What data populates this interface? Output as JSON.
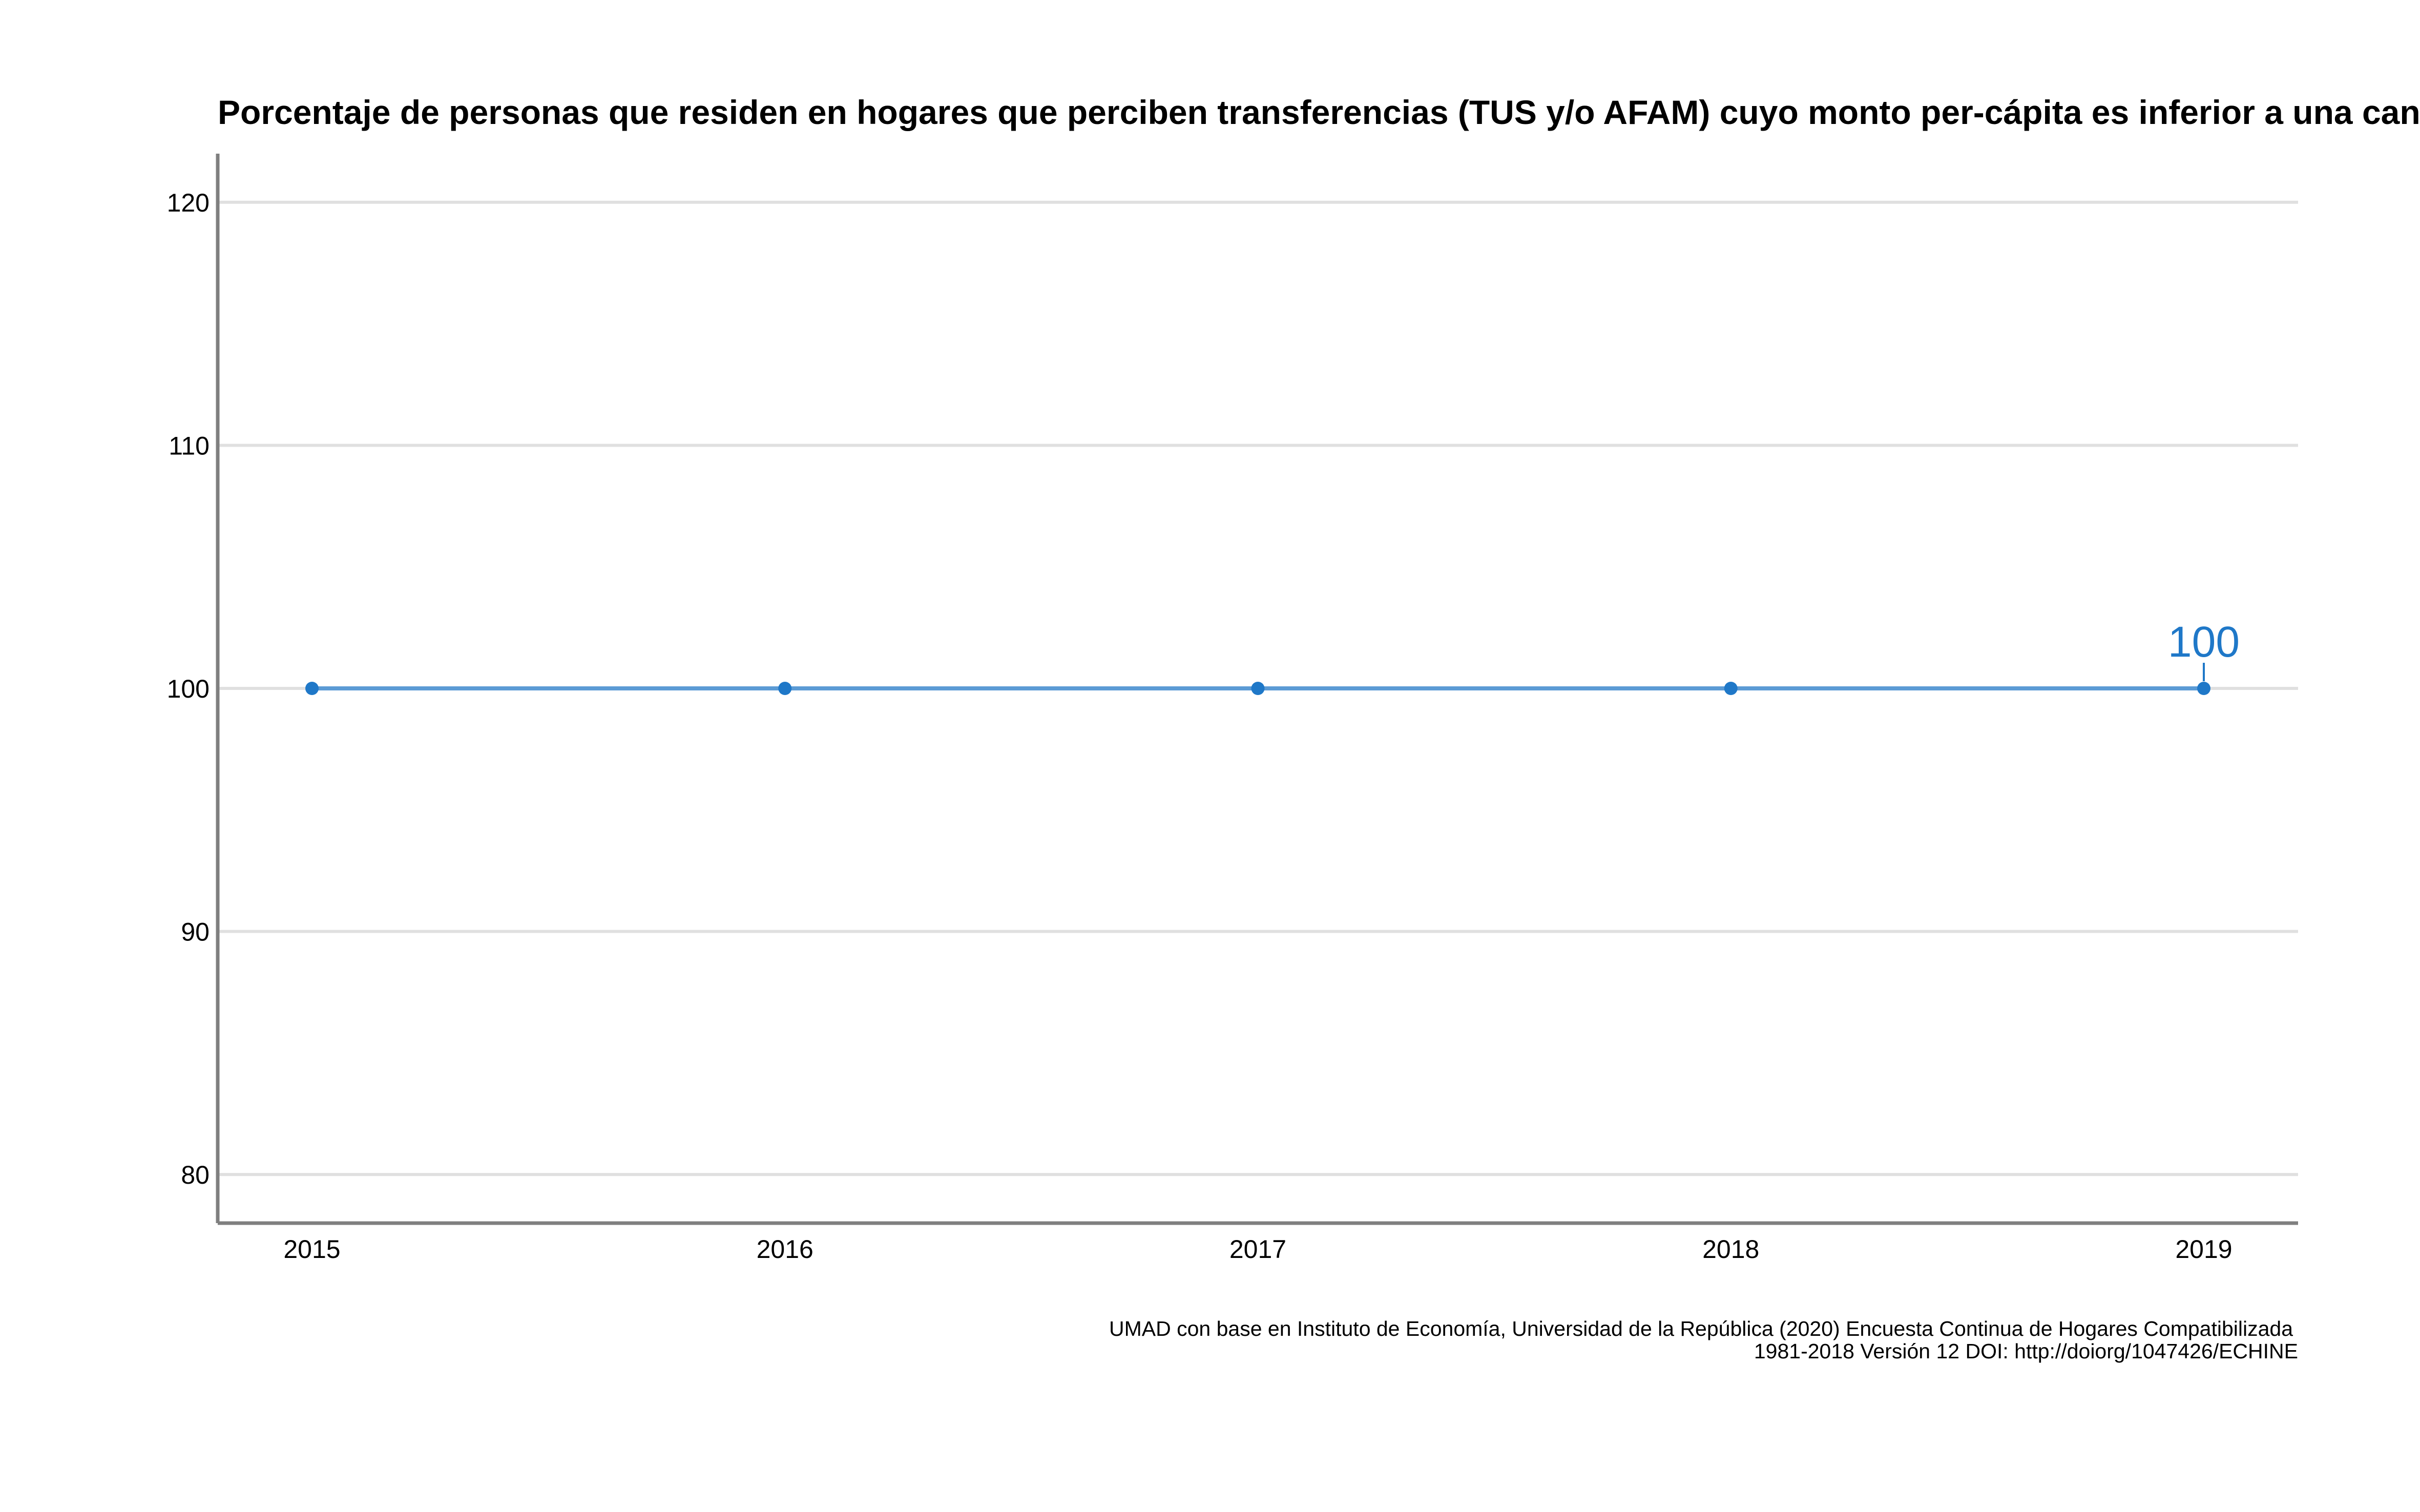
{
  "chart_data": {
    "type": "line",
    "title": "Porcentaje de personas que residen en hogares que perciben transferencias (TUS y/o AFAM) cuyo monto per-cápita es inferior a una canasta",
    "xlabel": "",
    "ylabel": "",
    "x": [
      "2015",
      "2016",
      "2017",
      "2018",
      "2019"
    ],
    "series": [
      {
        "values": [
          100,
          100,
          100,
          100,
          100
        ]
      }
    ],
    "ylim": [
      78,
      122
    ],
    "yticks": [
      80,
      90,
      100,
      110,
      120
    ],
    "y_tick_labels": [
      "80",
      "90",
      "100",
      "110",
      "120"
    ],
    "grid": "horizontal",
    "legend": "none",
    "data_labels": [
      {
        "x": "2019",
        "value": 100,
        "text": "100"
      }
    ],
    "caption": [
      "UMAD con base en Instituto de Economía, Universidad de la República (2020) Encuesta Continua de Hogares Compatibilizada",
      "1981-2018 Versión 12 DOI: http://doiorg/1047426/ECHINE"
    ],
    "colors": {
      "line": "#5B9BD5",
      "point": "#1F78C8",
      "label": "#1F78C8",
      "grid": "#E0E0E0",
      "axis": "#7F7F7F"
    }
  }
}
